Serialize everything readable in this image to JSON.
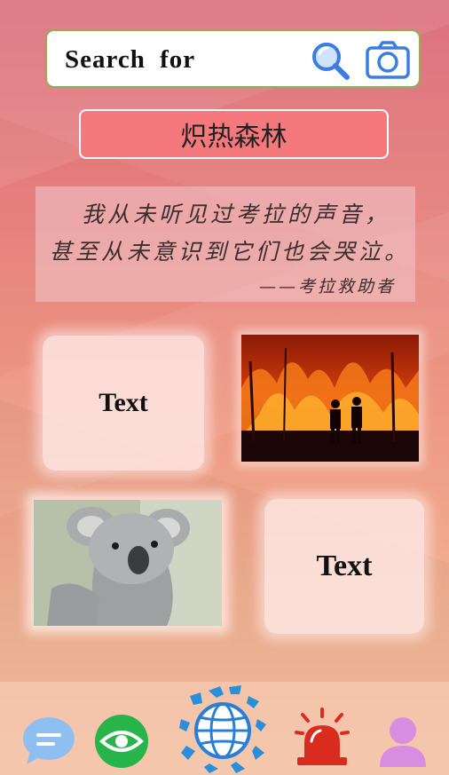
{
  "search": {
    "label": "Search  for",
    "search_icon": "magnifier-icon",
    "camera_icon": "camera-icon"
  },
  "title": "炽热森林",
  "quote": {
    "line1": "我从未听见过考拉的声音，",
    "line2": "甚至从未意识到它们也会哭泣。",
    "author": "——考拉救助者"
  },
  "cards": {
    "top_left_text": "Text",
    "bottom_right_text": "Text"
  },
  "images": {
    "fire": "forest-fire-photo",
    "koala": "koala-photo"
  },
  "nav": {
    "items": [
      "chat-icon",
      "eye-icon",
      "globe-icon",
      "alarm-icon",
      "user-icon"
    ]
  },
  "colors": {
    "title_bg": "#f5797c",
    "search_border": "#8ab24d",
    "accent_blue": "#3b7de0",
    "eye_green": "#27b44a",
    "alarm_red": "#d92b1e",
    "user_purple": "#d88ee0"
  }
}
